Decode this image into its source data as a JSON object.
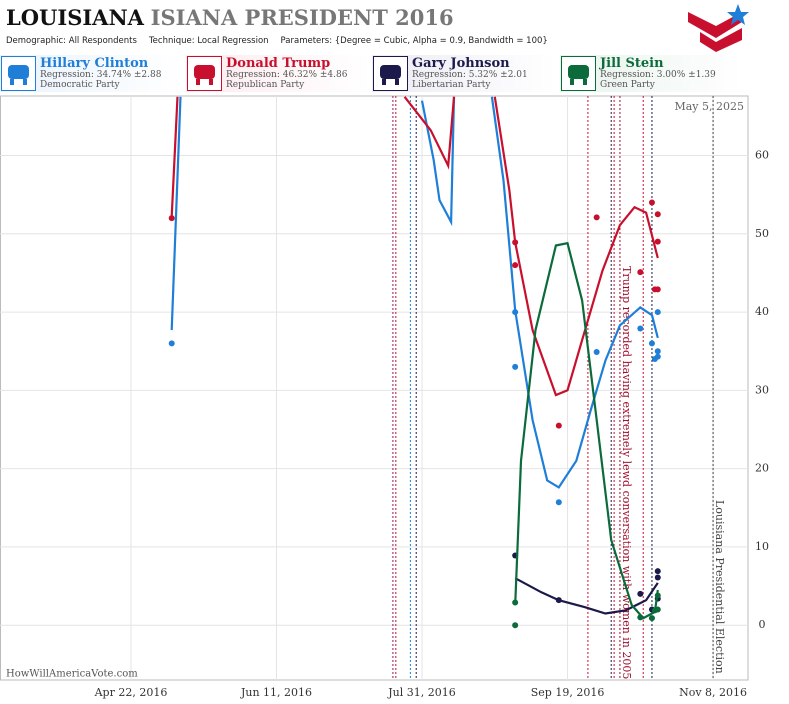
{
  "header": {
    "title_bold": "LOUISIANA",
    "title_rest": "ISIANA PRESIDENT 2016",
    "demographic_label": "Demographic:",
    "demographic": "All Respondents",
    "technique_label": "Technique:",
    "technique": "Local Regression",
    "parameters_label": "Parameters:",
    "parameters": "{Degree = Cubic, Alpha = 0.9, Bandwidth = 100}",
    "date": "May 5, 2025",
    "watermark": "HowWillAmericaVote.com"
  },
  "legend": [
    {
      "name": "Hillary Clinton",
      "regression": "Regression: 34.74% ±2.88",
      "party": "Democratic Party"
    },
    {
      "name": "Donald Trump",
      "regression": "Regression: 46.32% ±4.86",
      "party": "Republican Party"
    },
    {
      "name": "Gary Johnson",
      "regression": "Regression: 5.32% ±2.01",
      "party": "Libertarian Party"
    },
    {
      "name": "Jill Stein",
      "regression": "Regression: 3.00% ±1.39",
      "party": "Green Party"
    }
  ],
  "chart_data": {
    "type": "scatter",
    "xlim": [
      "2016-03-08",
      "2016-11-20"
    ],
    "xticks": [
      {
        "value": "2016-04-22",
        "label": "Apr 22, 2016"
      },
      {
        "value": "2016-06-11",
        "label": "Jun 11, 2016"
      },
      {
        "value": "2016-07-31",
        "label": "Jul 31, 2016"
      },
      {
        "value": "2016-09-19",
        "label": "Sep 19, 2016"
      },
      {
        "value": "2016-11-08",
        "label": "Nov 8, 2016"
      }
    ],
    "ylim": [
      -7,
      67.6
    ],
    "yticks": [
      0,
      10,
      20,
      30,
      40,
      50,
      60
    ],
    "grid": true,
    "series": [
      {
        "name": "Hillary Clinton",
        "color": "#1f7fd8",
        "points_x": [
          "2016-05-06",
          "2016-09-01",
          "2016-09-01",
          "2016-09-16",
          "2016-09-29",
          "2016-10-14",
          "2016-10-18",
          "2016-10-20",
          "2016-10-20",
          "2016-10-20",
          "2016-10-19"
        ],
        "points": [
          36,
          40,
          33,
          15.7,
          34.9,
          37.9,
          36,
          40,
          35,
          34.3,
          34
        ],
        "fit_x": [
          "2016-05-06",
          "2016-05-09",
          null,
          "2016-07-31",
          "2016-08-04",
          "2016-08-06",
          "2016-08-10",
          "2016-08-11",
          null,
          "2016-08-24",
          "2016-08-28",
          "2016-09-01",
          "2016-09-07",
          "2016-09-12",
          "2016-09-16",
          "2016-09-22",
          "2016-09-27",
          "2016-10-02",
          "2016-10-07",
          "2016-10-14",
          "2016-10-18",
          "2016-10-20"
        ],
        "fit": [
          37.7,
          67.5,
          null,
          67,
          59.4,
          54.3,
          51.5,
          67.5,
          null,
          67.5,
          56.8,
          40.2,
          26.2,
          18.5,
          17.6,
          21,
          27.5,
          33.8,
          38.3,
          40.6,
          39.6,
          36.7
        ]
      },
      {
        "name": "Donald Trump",
        "color": "#c8102e",
        "points_x": [
          "2016-05-06",
          "2016-09-01",
          "2016-09-01",
          "2016-09-16",
          "2016-09-29",
          "2016-10-14",
          "2016-10-18",
          "2016-10-20",
          "2016-10-20",
          "2016-10-19",
          "2016-10-20"
        ],
        "points": [
          52,
          48.9,
          46,
          25.5,
          52.1,
          45.1,
          54,
          52.5,
          49,
          42.9,
          42.9
        ],
        "fit_x": [
          "2016-05-06",
          "2016-05-08",
          null,
          "2016-07-25",
          "2016-08-03",
          "2016-08-09",
          "2016-08-11",
          null,
          "2016-08-25",
          "2016-08-30",
          "2016-09-01",
          "2016-09-07",
          "2016-09-15",
          "2016-09-19",
          "2016-09-24",
          "2016-10-01",
          "2016-10-07",
          "2016-10-12",
          "2016-10-16",
          "2016-10-20"
        ],
        "fit": [
          52.2,
          67.5,
          null,
          67.5,
          63.2,
          58.7,
          67.5,
          null,
          67.5,
          55.6,
          48.9,
          37.7,
          29.4,
          30,
          36.4,
          45.3,
          51.1,
          53.4,
          52.7,
          46.9
        ]
      },
      {
        "name": "Gary Johnson",
        "color": "#1b1a4a",
        "points_x": [
          "2016-09-01",
          "2016-09-16",
          "2016-10-14",
          "2016-10-20",
          "2016-10-20",
          "2016-10-18",
          "2016-10-20"
        ],
        "points": [
          8.9,
          3.2,
          4,
          6.9,
          6.1,
          2,
          3.4
        ],
        "fit_x": [
          "2016-09-01",
          "2016-09-10",
          "2016-09-16",
          "2016-09-25",
          "2016-10-02",
          "2016-10-09",
          "2016-10-16",
          "2016-10-20"
        ],
        "fit": [
          6,
          4.2,
          3.2,
          2.3,
          1.5,
          1.9,
          3.2,
          5.4
        ]
      },
      {
        "name": "Jill Stein",
        "color": "#0b6b3a",
        "points_x": [
          "2016-09-01",
          "2016-09-01",
          "2016-10-14",
          "2016-10-18",
          "2016-10-20",
          "2016-10-20",
          "2016-10-19"
        ],
        "points": [
          0,
          2.9,
          1,
          0.9,
          3.8,
          2,
          1.9
        ],
        "fit_x": [
          "2016-09-01",
          "2016-09-03",
          "2016-09-08",
          "2016-09-15",
          "2016-09-19",
          "2016-09-24",
          "2016-09-29",
          "2016-10-04",
          "2016-10-11",
          "2016-10-15",
          "2016-10-19",
          "2016-10-20"
        ],
        "fit": [
          2.6,
          21,
          37.7,
          48.5,
          48.8,
          41.5,
          26.2,
          10.9,
          2.6,
          0.9,
          1.7,
          4.5
        ]
      }
    ],
    "event_lines": [
      {
        "x": "2016-07-21",
        "color": "#8b1a5a"
      },
      {
        "x": "2016-07-22",
        "color": "#c8102e"
      },
      {
        "x": "2016-07-27",
        "color": "#1f7fd8"
      },
      {
        "x": "2016-07-29",
        "color": "#1b1a4a"
      },
      {
        "x": "2016-09-26",
        "color": "#c8102e"
      },
      {
        "x": "2016-10-04",
        "color": "#1b1a4a"
      },
      {
        "x": "2016-10-05",
        "color": "#c8102e"
      },
      {
        "x": "2016-10-18",
        "color": "#1b1a4a"
      },
      {
        "x": "2016-10-15",
        "color": "#c8102e"
      }
    ],
    "annotations": [
      {
        "x": "2016-10-07",
        "text": "Trump recorded having extremely lewd conversation with women in 2005",
        "color": "#a0102e"
      },
      {
        "x": "2016-11-08",
        "text": "Louisiana Presidential Election",
        "color": "#444"
      }
    ]
  }
}
